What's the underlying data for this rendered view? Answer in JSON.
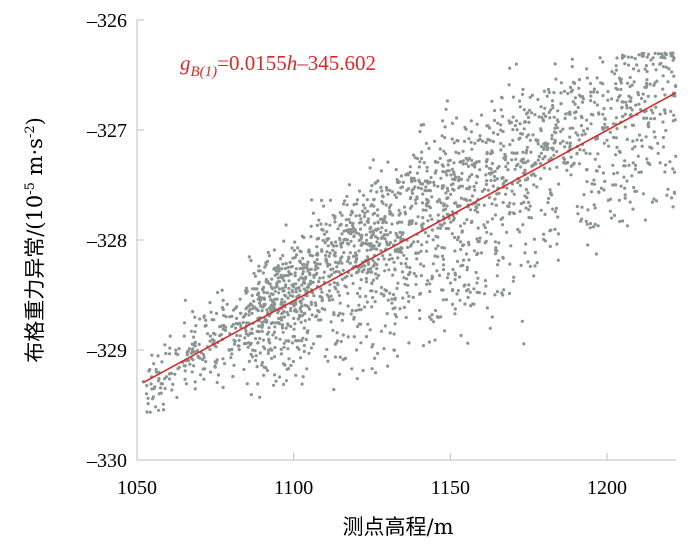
{
  "chart_data": {
    "type": "scatter",
    "title": "",
    "xlabel": "测点高程/m",
    "ylabel_main": "布格重力异常/(10",
    "ylabel_exp1": "-5",
    "ylabel_mid": " m·s",
    "ylabel_exp2": "-2",
    "ylabel_end": ")",
    "xlim": [
      1050,
      1222
    ],
    "ylim": [
      -330,
      -326
    ],
    "x_ticks": [
      1050,
      1100,
      1150,
      1200
    ],
    "y_ticks": [
      -326,
      -327,
      -328,
      -329,
      -330
    ],
    "x_tick_labels": [
      "1050",
      "1100",
      "1150",
      "1200"
    ],
    "y_tick_labels": [
      "–326",
      "–327",
      "–328",
      "–329",
      "–330"
    ],
    "grid": false,
    "legend": "none",
    "colors": {
      "points": "#8a9490",
      "fit_line": "#d42a2a",
      "axis": "#bdbdbd"
    },
    "fit": {
      "slope": 0.0155,
      "intercept": -345.602,
      "x_range": [
        1052,
        1222
      ],
      "eq_g": "g",
      "eq_sub": "B(1)",
      "eq_rest1": "=0.0155",
      "eq_h": "h",
      "eq_rest2": "–345.602"
    },
    "point_cloud": {
      "count": 2300,
      "seed": 20240517,
      "segments": [
        {
          "x": [
            1052,
            1065
          ],
          "center_offset": -0.05,
          "spread": 0.13,
          "weight": 60
        },
        {
          "x": [
            1065,
            1085
          ],
          "center_offset": 0.05,
          "spread": 0.18,
          "weight": 170
        },
        {
          "x": [
            1085,
            1105
          ],
          "center_offset": 0.12,
          "spread": 0.22,
          "weight": 330
        },
        {
          "x": [
            1085,
            1110
          ],
          "center_offset": -0.35,
          "spread": 0.2,
          "weight": 110
        },
        {
          "x": [
            1105,
            1130
          ],
          "center_offset": 0.22,
          "spread": 0.24,
          "weight": 380
        },
        {
          "x": [
            1110,
            1140
          ],
          "center_offset": -0.45,
          "spread": 0.3,
          "weight": 150
        },
        {
          "x": [
            1130,
            1160
          ],
          "center_offset": 0.25,
          "spread": 0.28,
          "weight": 360
        },
        {
          "x": [
            1140,
            1165
          ],
          "center_offset": -0.55,
          "spread": 0.3,
          "weight": 140
        },
        {
          "x": [
            1160,
            1190
          ],
          "center_offset": 0.28,
          "spread": 0.3,
          "weight": 300
        },
        {
          "x": [
            1165,
            1185
          ],
          "center_offset": -0.5,
          "spread": 0.35,
          "weight": 90
        },
        {
          "x": [
            1190,
            1222
          ],
          "center_offset": 0.2,
          "spread": 0.28,
          "weight": 250
        },
        {
          "x": [
            1190,
            1222
          ],
          "center_offset": -0.55,
          "spread": 0.25,
          "weight": 110
        }
      ],
      "y_max": -326.3,
      "y_min": -329.65
    }
  }
}
